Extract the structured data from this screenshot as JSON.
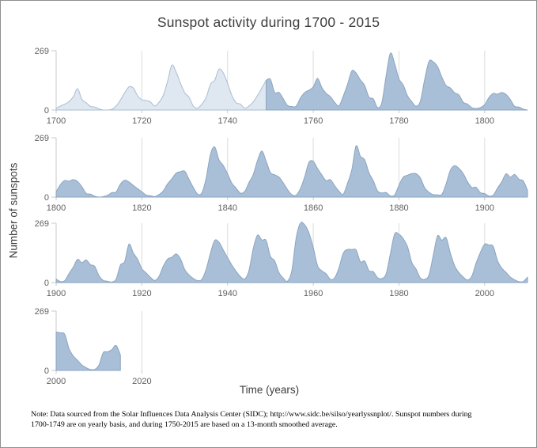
{
  "title": "Sunspot activity during 1700 - 2015",
  "axes": {
    "y_label": "Number of sunspots",
    "x_label": "Time (years)",
    "y_tick_max": "269",
    "y_tick_min": "0"
  },
  "note": {
    "line1": "Note: Data sourced from the Solar Influences Data Analysis Center (SIDC); http://www.sidc.be/silso/yearlyssnplot/. Sunspot numbers during",
    "line2": "1700-1749 are on yearly basis, and during 1750-2015 are based on a 13-month smoothed average."
  },
  "colors": {
    "light_fill": "#dfe7f1",
    "light_stroke": "#aabdd2",
    "dark_fill": "#a9bfd7",
    "dark_stroke": "#8aa5c0",
    "grid": "#dcdcdc",
    "axis": "#c9c9c9",
    "tick_label": "#616161"
  },
  "chart_data": {
    "type": "area",
    "title": "Sunspot activity during 1700 - 2015",
    "xlabel": "Time (years)",
    "ylabel": "Number of sunspots",
    "ylim": [
      0,
      269
    ],
    "grid": "vertical-only",
    "legend": "none",
    "panels": [
      {
        "x_start": 1700,
        "x_end": 1810,
        "ticks": [
          1700,
          1720,
          1740,
          1760,
          1780,
          1800
        ],
        "segments": [
          {
            "name": "yearly-1700-1749",
            "style": "light",
            "start_year": 1700,
            "values": [
              8.3,
              18.3,
              26.7,
              38.3,
              60,
              96.7,
              48.3,
              33.3,
              16.7,
              13.3,
              5,
              0,
              0,
              3.3,
              18.3,
              45,
              78.3,
              105,
              100,
              65,
              46.7,
              43.3,
              36.7,
              18.3,
              35,
              66.7,
              130,
              203.3,
              171.7,
              121.7,
              78.3,
              58.3,
              18.3,
              8.3,
              26.7,
              56.7,
              116.7,
              135,
              185,
              168.3,
              121.7,
              66.7,
              33.3,
              26.7,
              8.3,
              18.3,
              36.7,
              66.7,
              100,
              134.8
            ]
          },
          {
            "name": "smoothed-1749-1810",
            "style": "dark",
            "start_year": 1749,
            "values": [
              134.8,
              139,
              79.5,
              79.7,
              51.2,
              20.3,
              16,
              17,
              54,
              79.3,
              90,
              104.7,
              143.3,
              102,
              75.2,
              60.7,
              34.8,
              19,
              63,
              116.3,
              176.8,
              168,
              136,
              110.8,
              58,
              51,
              11.7,
              33,
              154.2,
              257.3,
              209.8,
              141.3,
              113.5,
              64.2,
              38,
              17,
              40.2,
              138.2,
              220,
              218.2,
              196.8,
              149.8,
              111,
              100,
              78.2,
              68.3,
              35.5,
              26.7,
              10.7,
              6.8,
              11.3,
              24.2,
              56.7,
              75,
              71.8,
              79.2,
              70.3,
              46.8,
              16.8,
              13.5,
              4.2,
              0
            ]
          }
        ]
      },
      {
        "x_start": 1800,
        "x_end": 1910,
        "ticks": [
          1800,
          1820,
          1840,
          1860,
          1880,
          1900
        ],
        "segments": [
          {
            "name": "smoothed-1800-1910",
            "style": "dark",
            "start_year": 1800,
            "values": [
              24.2,
              56.7,
              75,
              71.8,
              79.2,
              70.3,
              46.8,
              16.8,
              13.5,
              4.2,
              0,
              2.3,
              8.3,
              20.3,
              23.2,
              59,
              76.3,
              68.3,
              52.9,
              38.5,
              24.2,
              9.2,
              6.3,
              2.2,
              11.4,
              28.2,
              59.9,
              83,
              108.5,
              115.2,
              117.4,
              80.8,
              44.3,
              13.9,
              19.2,
              85.8,
              192.7,
              227.3,
              168.7,
              142.9,
              105.5,
              63.3,
              40.3,
              18.1,
              25.1,
              65.8,
              102.7,
              166.3,
              208.3,
              162.9,
              111.1,
              101.1,
              90.4,
              64.5,
              33.7,
              10.9,
              8.3,
              38.2,
              91.7,
              157.5,
              162.2,
              129.6,
              100.3,
              74.5,
              79.2,
              51.2,
              26.9,
              13.1,
              62.8,
              123.7,
              232,
              185.3,
              169.2,
              110.1,
              74.5,
              28.3,
              18.9,
              20.7,
              5.7,
              10,
              53.7,
              90.5,
              99,
              106.1,
              105.8,
              86.3,
              42.4,
              21.8,
              11.2,
              10.4,
              11.8,
              59.5,
              121.7,
              142,
              130,
              106.6,
              69.4,
              43.8,
              44.4,
              20.2,
              15.7,
              4.6,
              8.5,
              40.8,
              70.1,
              105.5,
              90.1,
              102.8,
              80.9,
              73.2,
              30.9
            ]
          }
        ]
      },
      {
        "x_start": 1900,
        "x_end": 2010,
        "ticks": [
          1900,
          1920,
          1940,
          1960,
          1980,
          2000
        ],
        "segments": [
          {
            "name": "smoothed-1900-2010",
            "style": "dark",
            "start_year": 1900,
            "values": [
              15.7,
              4.6,
              8.5,
              40.8,
              70.1,
              105.5,
              90.1,
              102.8,
              80.9,
              73.2,
              30.9,
              9.5,
              6,
              2.4,
              16.1,
              79.3,
              95.8,
              173.9,
              134.6,
              105.7,
              62.7,
              43.5,
              23.7,
              9.7,
              27.9,
              74,
              106.5,
              114.7,
              129.7,
              108.2,
              59.4,
              35.1,
              18.6,
              9.2,
              14.6,
              60.2,
              132.8,
              190.6,
              182.6,
              148,
              113,
              79.2,
              50.8,
              27.1,
              16.1,
              55.3,
              154.3,
              214.7,
              193,
              190.7,
              118.9,
              98.3,
              45,
              20.1,
              6.6,
              54.2,
              200.7,
              269.3,
              261.7,
              225.1,
              159,
              76.4,
              53.4,
              39.9,
              15,
              22,
              66.8,
              132.9,
              150,
              149.4,
              148,
              94.4,
              97.6,
              54.1,
              49.2,
              22.5,
              18.4,
              39.3,
              131,
              220.1,
              218.9,
              198.9,
              162.4,
              91,
              60.5,
              20.6,
              14.8,
              33.9,
              123,
              211.1,
              191.8,
              203.3,
              133,
              76.1,
              44.9,
              25.1,
              11.6,
              28.9,
              88.3,
              136.3,
              173.9,
              170.4,
              163.6,
              99.3,
              65.3,
              45.8,
              24.7,
              12.6,
              4.2,
              4.8,
              24.9
            ]
          }
        ]
      },
      {
        "x_start": 2000,
        "x_end": 2110,
        "ticks": [
          2000,
          2020
        ],
        "segments": [
          {
            "name": "smoothed-2000-2015",
            "style": "dark",
            "start_year": 2000,
            "values": [
              173.9,
              170.4,
              163.6,
              99.3,
              65.3,
              45.8,
              24.7,
              12.6,
              4.2,
              4.8,
              24.9,
              80.8,
              84.5,
              94,
              113.3,
              69.8
            ]
          }
        ]
      }
    ]
  }
}
